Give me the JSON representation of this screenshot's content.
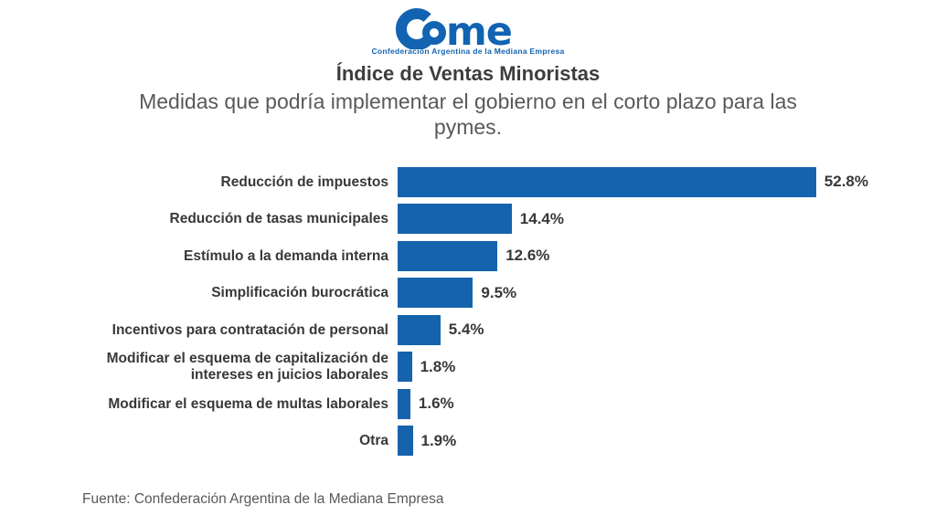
{
  "logo": {
    "name": "Came",
    "wordmark_suffix": "me",
    "tagline": "Confederación Argentina de la Mediana Empresa"
  },
  "header": {
    "title": "Índice de Ventas Minoristas",
    "subtitle": "Medidas que podría implementar el gobierno en el corto plazo para las pymes."
  },
  "footer": {
    "source": "Fuente: Confederación Argentina de la Mediana Empresa"
  },
  "colors": {
    "bar": "#1563ac",
    "logo_blue": "#1263b2",
    "title_text": "#3d3d3d",
    "subtitle_text": "#595959",
    "label_text": "#383838",
    "source_text": "#595959",
    "background": "#ffffff"
  },
  "chart_data": {
    "type": "bar",
    "orientation": "horizontal",
    "title": "Índice de Ventas Minoristas",
    "subtitle": "Medidas que podría implementar el gobierno en el corto plazo para las pymes.",
    "categories": [
      "Reducción de impuestos",
      "Reducción de tasas municipales",
      "Estímulo a la demanda interna",
      "Simplificación burocrática",
      "Incentivos para contratación de personal",
      "Modificar el esquema de capitalización de intereses en juicios laborales",
      "Modificar el esquema de multas laborales",
      "Otra"
    ],
    "values": [
      52.8,
      14.4,
      12.6,
      9.5,
      5.4,
      1.8,
      1.6,
      1.9
    ],
    "value_labels": [
      "52.8%",
      "14.4%",
      "12.6%",
      "9.5%",
      "5.4%",
      "1.8%",
      "1.6%",
      "1.9%"
    ],
    "unit": "%",
    "xlabel": "",
    "ylabel": "",
    "xlim": [
      0,
      57
    ],
    "grid": false,
    "legend": false,
    "data_labels_position": "right-of-bar",
    "source": "Fuente: Confederación Argentina de la Mediana Empresa"
  }
}
